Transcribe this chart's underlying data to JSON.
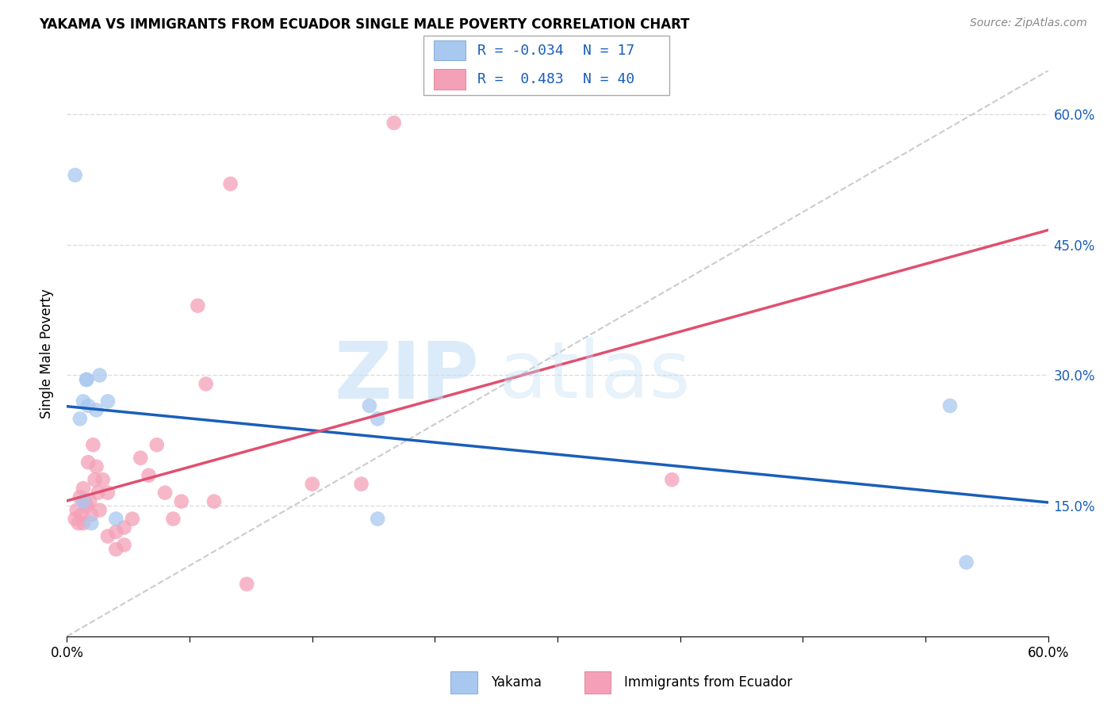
{
  "title": "YAKAMA VS IMMIGRANTS FROM ECUADOR SINGLE MALE POVERTY CORRELATION CHART",
  "source": "Source: ZipAtlas.com",
  "ylabel": "Single Male Poverty",
  "legend_label1": "Yakama",
  "legend_label2": "Immigrants from Ecuador",
  "R1": -0.034,
  "N1": 17,
  "R2": 0.483,
  "N2": 40,
  "color1": "#a8c8f0",
  "color2": "#f4a0b8",
  "line_color1": "#1a5eb8",
  "line_color2": "#e05070",
  "diagonal_color": "#cccccc",
  "watermark_zip": "ZIP",
  "watermark_atlas": "atlas",
  "xlim": [
    0.0,
    0.6
  ],
  "ylim": [
    0.0,
    0.65
  ],
  "ytick_positions": [
    0.15,
    0.3,
    0.45,
    0.6
  ],
  "ytick_labels": [
    "15.0%",
    "30.0%",
    "45.0%",
    "60.0%"
  ],
  "grid_color": "#dddddd",
  "yakama_x": [
    0.005,
    0.008,
    0.01,
    0.01,
    0.012,
    0.012,
    0.013,
    0.015,
    0.018,
    0.02,
    0.025,
    0.03,
    0.185,
    0.19,
    0.19,
    0.54,
    0.55
  ],
  "yakama_y": [
    0.53,
    0.25,
    0.27,
    0.155,
    0.295,
    0.295,
    0.265,
    0.13,
    0.26,
    0.3,
    0.27,
    0.135,
    0.265,
    0.25,
    0.135,
    0.265,
    0.085
  ],
  "ecuador_x": [
    0.005,
    0.006,
    0.007,
    0.008,
    0.009,
    0.01,
    0.01,
    0.011,
    0.012,
    0.013,
    0.014,
    0.015,
    0.016,
    0.017,
    0.018,
    0.019,
    0.02,
    0.022,
    0.025,
    0.025,
    0.03,
    0.03,
    0.035,
    0.035,
    0.04,
    0.045,
    0.05,
    0.055,
    0.06,
    0.065,
    0.07,
    0.08,
    0.085,
    0.09,
    0.1,
    0.11,
    0.15,
    0.18,
    0.2,
    0.37
  ],
  "ecuador_y": [
    0.135,
    0.145,
    0.13,
    0.16,
    0.14,
    0.17,
    0.13,
    0.155,
    0.15,
    0.2,
    0.155,
    0.14,
    0.22,
    0.18,
    0.195,
    0.165,
    0.145,
    0.18,
    0.165,
    0.115,
    0.12,
    0.1,
    0.125,
    0.105,
    0.135,
    0.205,
    0.185,
    0.22,
    0.165,
    0.135,
    0.155,
    0.38,
    0.29,
    0.155,
    0.52,
    0.06,
    0.175,
    0.175,
    0.59,
    0.18
  ]
}
